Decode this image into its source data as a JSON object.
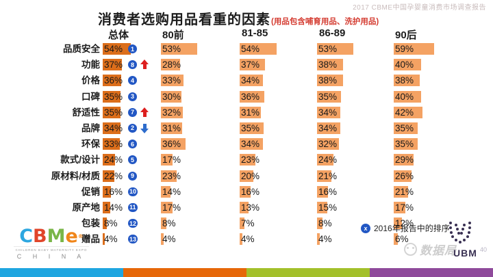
{
  "watermark_top": "2017 CBME中国孕婴童消费市场调查报告",
  "chart_data": {
    "type": "bar",
    "title": "消费者选购用品看重的因素",
    "subtitle": "(用品包含哺育用品、洗护用品)",
    "orientation": "horizontal",
    "columns": [
      "总体",
      "80前",
      "81-85",
      "86-89",
      "90后"
    ],
    "categories": [
      "品质安全",
      "功能",
      "价格",
      "口碑",
      "舒适性",
      "品牌",
      "环保",
      "款式/设计",
      "原材料/材质",
      "促销",
      "原产地",
      "包装",
      "赠品"
    ],
    "series": [
      {
        "name": "总体",
        "values": [
          54,
          37,
          36,
          35,
          35,
          34,
          33,
          24,
          22,
          16,
          14,
          8,
          4
        ]
      },
      {
        "name": "80前",
        "values": [
          53,
          28,
          33,
          30,
          32,
          31,
          36,
          17,
          23,
          14,
          17,
          8,
          4
        ]
      },
      {
        "name": "81-85",
        "values": [
          54,
          37,
          34,
          36,
          31,
          35,
          34,
          23,
          20,
          16,
          13,
          7,
          4
        ]
      },
      {
        "name": "86-89",
        "values": [
          53,
          38,
          38,
          35,
          34,
          34,
          32,
          24,
          21,
          16,
          15,
          8,
          4
        ]
      },
      {
        "name": "90后",
        "values": [
          59,
          40,
          38,
          40,
          42,
          35,
          35,
          29,
          26,
          21,
          17,
          12,
          6
        ]
      }
    ],
    "value_suffix": "%",
    "rank_2016": [
      1,
      8,
      4,
      3,
      7,
      2,
      6,
      5,
      9,
      10,
      11,
      12,
      13
    ],
    "trend": [
      "",
      "up",
      "",
      "",
      "up",
      "down",
      "",
      "",
      "",
      "",
      "",
      "",
      ""
    ],
    "bar_color": "#f4a263",
    "bar_color_total": "#dc6e1b",
    "rank_badge_color": "#2257c4",
    "trend_up_color": "#dd1f1f",
    "trend_down_color": "#2d6ccc",
    "xlim": [
      0,
      60
    ],
    "grid": false,
    "legend_position": "bottom-right"
  },
  "legend": {
    "symbol": "x",
    "label": "2016年报告中的排序"
  },
  "footer": {
    "cbme_logo": {
      "letters": [
        {
          "ch": "C",
          "color": "#2ea7e0"
        },
        {
          "ch": "B",
          "color": "#e0452a"
        },
        {
          "ch": "M",
          "color": "#7ab648"
        },
        {
          "ch": "e",
          "color": "#f08519"
        }
      ],
      "tagline": "CHILDREN BABY MATERNITY EXPO",
      "country": "C H I N A"
    },
    "ubm_label": "UBM",
    "watermark": "数据局",
    "page_number": "40",
    "stripe_colors": [
      "#1fa6e0",
      "#e66708",
      "#a3c02b",
      "#8f4a9b"
    ]
  }
}
